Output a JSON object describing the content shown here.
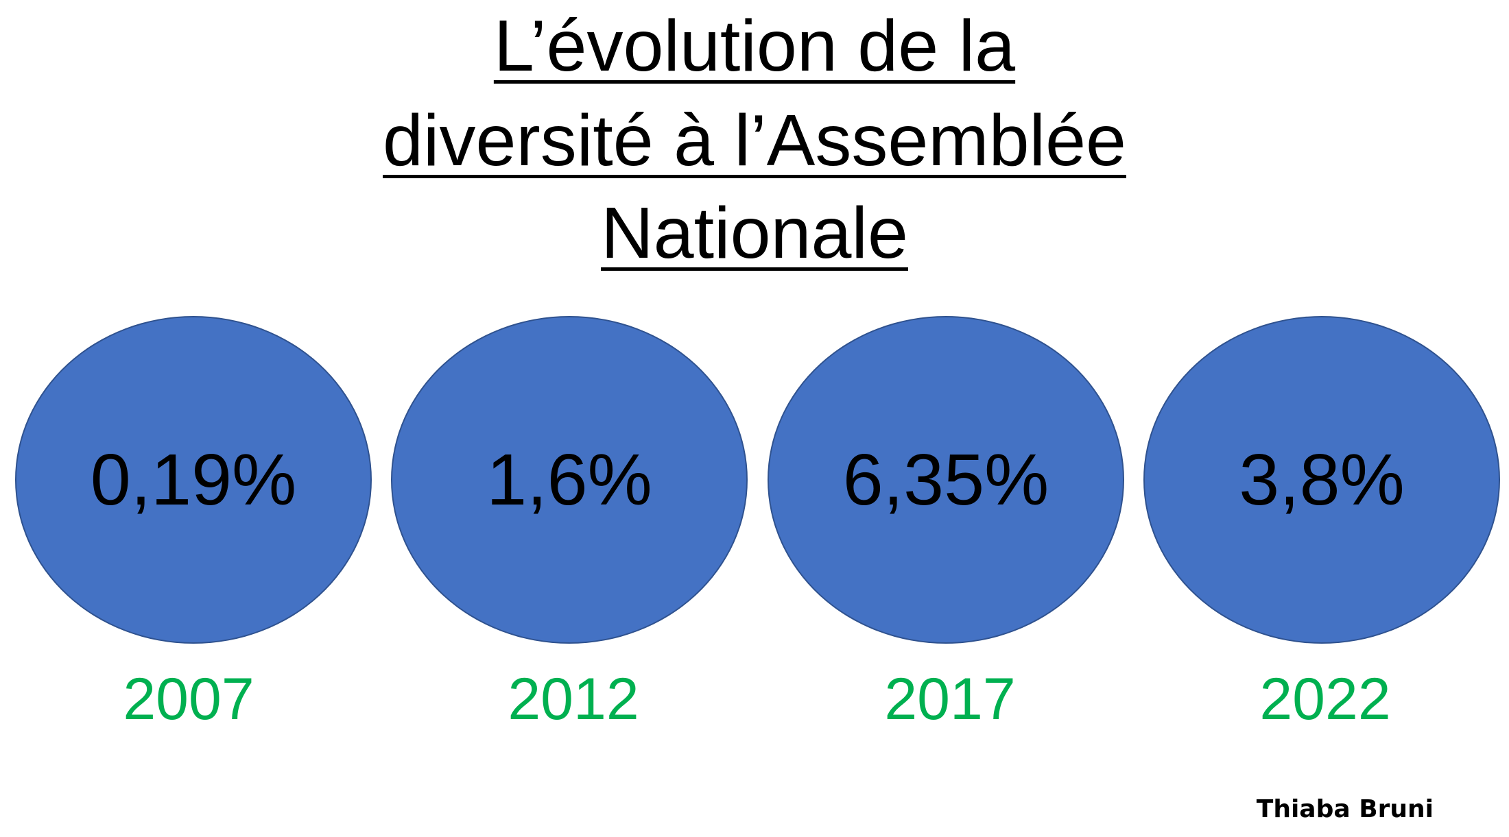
{
  "title": {
    "lines": [
      "L’évolution de la",
      "diversité à l’Assemblée",
      "Nationale"
    ]
  },
  "items": [
    {
      "value": "0,19%",
      "year": "2007"
    },
    {
      "value": "1,6%",
      "year": "2012"
    },
    {
      "value": "6,35%",
      "year": "2017"
    },
    {
      "value": "3,8%",
      "year": "2022"
    }
  ],
  "author": "Thiaba Bruni",
  "colors": {
    "circle": "#4472C4",
    "circle_border": "#2F528F",
    "year": "#00B050"
  }
}
